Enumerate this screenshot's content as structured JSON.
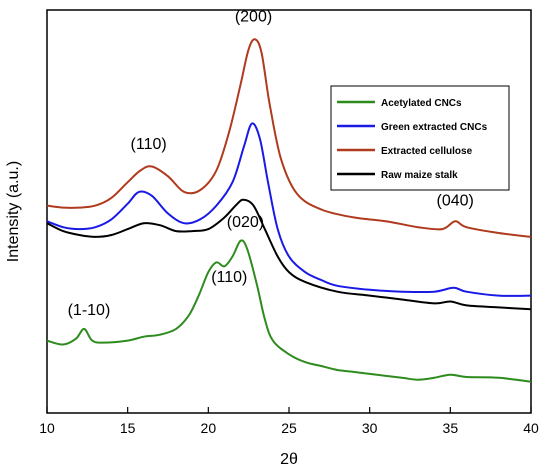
{
  "chart_data": {
    "type": "line",
    "title": "",
    "xlabel": "2θ",
    "ylabel": "Intensity (a.u.)",
    "xlim": [
      10,
      40
    ],
    "xticks": [
      10,
      15,
      20,
      25,
      30,
      35,
      40
    ],
    "y_tick_labels_shown": false,
    "grid": false,
    "legend_position": "top-right",
    "series": [
      {
        "name": "Acetylated CNCs",
        "color": "#2e8b1e",
        "points": [
          [
            10,
            0.185
          ],
          [
            11,
            0.175
          ],
          [
            11.8,
            0.19
          ],
          [
            12.3,
            0.215
          ],
          [
            12.8,
            0.185
          ],
          [
            13.5,
            0.18
          ],
          [
            15,
            0.185
          ],
          [
            16,
            0.195
          ],
          [
            17,
            0.2
          ],
          [
            18,
            0.215
          ],
          [
            18.8,
            0.25
          ],
          [
            19.4,
            0.3
          ],
          [
            20,
            0.36
          ],
          [
            20.5,
            0.385
          ],
          [
            21,
            0.375
          ],
          [
            21.5,
            0.4
          ],
          [
            22,
            0.44
          ],
          [
            22.4,
            0.42
          ],
          [
            23,
            0.33
          ],
          [
            23.5,
            0.24
          ],
          [
            24,
            0.185
          ],
          [
            25,
            0.15
          ],
          [
            26,
            0.13
          ],
          [
            27,
            0.12
          ],
          [
            28,
            0.11
          ],
          [
            29,
            0.105
          ],
          [
            30,
            0.1
          ],
          [
            32,
            0.09
          ],
          [
            33,
            0.085
          ],
          [
            34,
            0.09
          ],
          [
            35,
            0.098
          ],
          [
            36,
            0.092
          ],
          [
            38,
            0.09
          ],
          [
            40,
            0.08
          ]
        ]
      },
      {
        "name": "Green extracted CNCs",
        "color": "#1a1ae6",
        "points": [
          [
            10,
            0.49
          ],
          [
            11,
            0.475
          ],
          [
            12,
            0.47
          ],
          [
            13,
            0.475
          ],
          [
            14,
            0.495
          ],
          [
            15,
            0.535
          ],
          [
            15.7,
            0.565
          ],
          [
            16.5,
            0.555
          ],
          [
            17.5,
            0.51
          ],
          [
            18.5,
            0.485
          ],
          [
            19.5,
            0.495
          ],
          [
            20.5,
            0.53
          ],
          [
            21.5,
            0.59
          ],
          [
            22.2,
            0.68
          ],
          [
            22.7,
            0.74
          ],
          [
            23.2,
            0.7
          ],
          [
            23.7,
            0.59
          ],
          [
            24.3,
            0.47
          ],
          [
            25,
            0.4
          ],
          [
            26,
            0.36
          ],
          [
            27,
            0.34
          ],
          [
            28,
            0.325
          ],
          [
            30,
            0.315
          ],
          [
            32,
            0.31
          ],
          [
            34,
            0.31
          ],
          [
            35.2,
            0.32
          ],
          [
            36,
            0.31
          ],
          [
            38,
            0.3
          ],
          [
            40,
            0.3
          ]
        ]
      },
      {
        "name": "Extracted cellulose",
        "color": "#b03a1e",
        "points": [
          [
            10,
            0.53
          ],
          [
            11,
            0.525
          ],
          [
            12,
            0.525
          ],
          [
            13,
            0.53
          ],
          [
            14,
            0.55
          ],
          [
            15,
            0.59
          ],
          [
            15.8,
            0.62
          ],
          [
            16.5,
            0.63
          ],
          [
            17.5,
            0.605
          ],
          [
            18.5,
            0.565
          ],
          [
            19.5,
            0.57
          ],
          [
            20.5,
            0.62
          ],
          [
            21.3,
            0.72
          ],
          [
            22,
            0.84
          ],
          [
            22.5,
            0.93
          ],
          [
            22.9,
            0.955
          ],
          [
            23.3,
            0.92
          ],
          [
            23.8,
            0.79
          ],
          [
            24.5,
            0.65
          ],
          [
            25.5,
            0.56
          ],
          [
            27,
            0.52
          ],
          [
            29,
            0.5
          ],
          [
            31,
            0.49
          ],
          [
            33,
            0.475
          ],
          [
            34.5,
            0.47
          ],
          [
            35.3,
            0.49
          ],
          [
            36,
            0.475
          ],
          [
            38,
            0.46
          ],
          [
            40,
            0.45
          ]
        ]
      },
      {
        "name": "Raw maize stalk",
        "color": "#000000",
        "points": [
          [
            10,
            0.485
          ],
          [
            11,
            0.465
          ],
          [
            12,
            0.455
          ],
          [
            13,
            0.45
          ],
          [
            14,
            0.455
          ],
          [
            15,
            0.47
          ],
          [
            16,
            0.485
          ],
          [
            17,
            0.48
          ],
          [
            18,
            0.465
          ],
          [
            19,
            0.465
          ],
          [
            20,
            0.47
          ],
          [
            21,
            0.5
          ],
          [
            21.8,
            0.535
          ],
          [
            22.2,
            0.545
          ],
          [
            22.8,
            0.53
          ],
          [
            23.5,
            0.47
          ],
          [
            24.3,
            0.4
          ],
          [
            25,
            0.36
          ],
          [
            26,
            0.335
          ],
          [
            28,
            0.31
          ],
          [
            30,
            0.3
          ],
          [
            32,
            0.29
          ],
          [
            34,
            0.28
          ],
          [
            35,
            0.285
          ],
          [
            36,
            0.275
          ],
          [
            38,
            0.27
          ],
          [
            40,
            0.265
          ]
        ]
      }
    ],
    "annotations": [
      {
        "text": "(200)",
        "x": 22.8,
        "y": 1.0
      },
      {
        "text": "(110)",
        "x": 16.3,
        "y": 0.675
      },
      {
        "text": "(040)",
        "x": 35.3,
        "y": 0.53
      },
      {
        "text": "(020)",
        "x": 22.3,
        "y": 0.475
      },
      {
        "text": "(110)",
        "x": 21.3,
        "y": 0.335
      },
      {
        "text": "(1-10)",
        "x": 12.6,
        "y": 0.25
      }
    ]
  }
}
